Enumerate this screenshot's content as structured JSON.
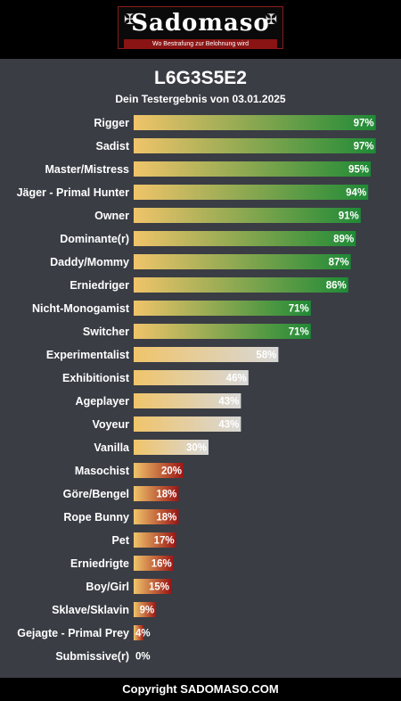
{
  "header": {
    "logo_title": "Sadomaso",
    "logo_tagline": "Wo Bestrafung zur Belohnung wird"
  },
  "page": {
    "title": "L6G3S5E2",
    "subtitle": "Dein Testergebnis von 03.01.2025"
  },
  "footer": {
    "text": "Copyright SADOMASO.COM"
  },
  "colors": {
    "bar_start": "#f0c46a",
    "high_end": "#1f8a36",
    "mid_end": "#d8d8d8",
    "low_end": "#9b1515",
    "background": "#3a3d44"
  },
  "chart_data": {
    "type": "bar",
    "orientation": "horizontal",
    "xlim": [
      0,
      100
    ],
    "unit": "%",
    "categories": [
      "Rigger",
      "Sadist",
      "Master/Mistress",
      "Jäger - Primal Hunter",
      "Owner",
      "Dominante(r)",
      "Daddy/Mommy",
      "Erniedriger",
      "Nicht-Monogamist",
      "Switcher",
      "Experimentalist",
      "Exhibitionist",
      "Ageplayer",
      "Voyeur",
      "Vanilla",
      "Masochist",
      "Göre/Bengel",
      "Rope Bunny",
      "Pet",
      "Erniedrigte",
      "Boy/Girl",
      "Sklave/Sklavin",
      "Gejagte - Primal Prey",
      "Submissive(r)"
    ],
    "values": [
      97,
      97,
      95,
      94,
      91,
      89,
      87,
      86,
      71,
      71,
      58,
      46,
      43,
      43,
      30,
      20,
      18,
      18,
      17,
      16,
      15,
      9,
      4,
      0
    ],
    "labels": [
      "97%",
      "97%",
      "95%",
      "94%",
      "91%",
      "89%",
      "87%",
      "86%",
      "71%",
      "71%",
      "58%",
      "46%",
      "43%",
      "43%",
      "30%",
      "20%",
      "18%",
      "18%",
      "17%",
      "16%",
      "15%",
      "9%",
      "4%",
      "0%"
    ]
  }
}
